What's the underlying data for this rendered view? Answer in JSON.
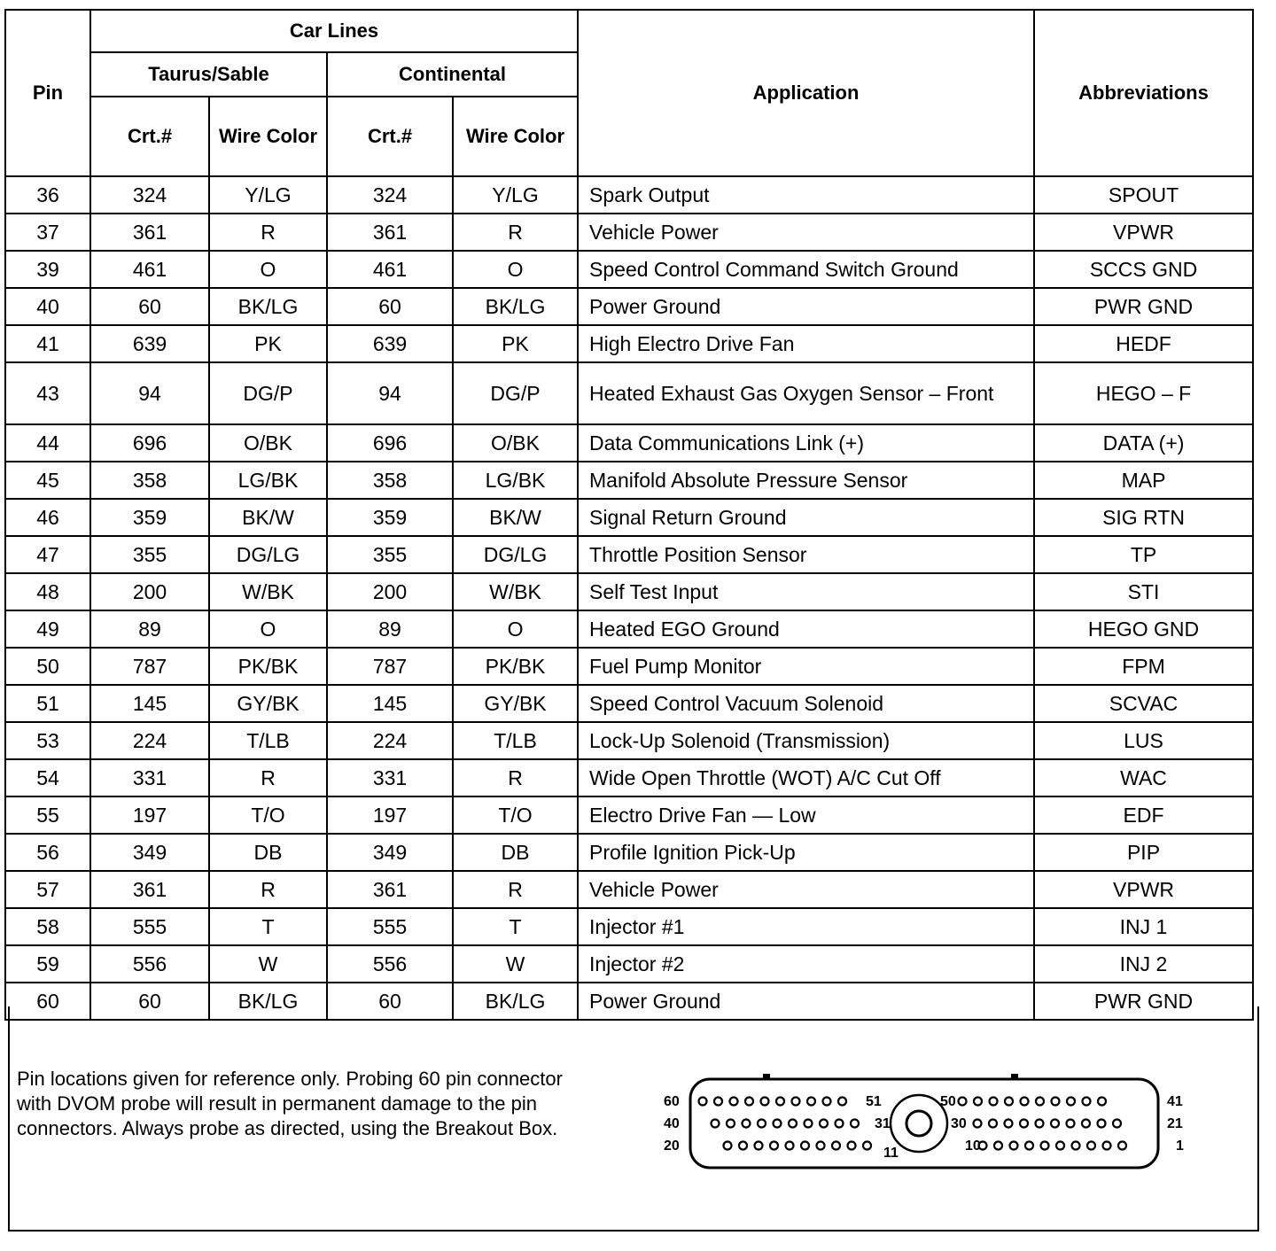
{
  "header": {
    "pin": "Pin",
    "car_lines": "Car Lines",
    "taurus": "Taurus/Sable",
    "continental": "Continental",
    "crt": "Crt.#",
    "wire_color": "Wire Color",
    "application": "Application",
    "abbreviations": "Abbreviations"
  },
  "rows": [
    [
      "36",
      "324",
      "Y/LG",
      "324",
      "Y/LG",
      "Spark Output",
      "SPOUT"
    ],
    [
      "37",
      "361",
      "R",
      "361",
      "R",
      "Vehicle Power",
      "VPWR"
    ],
    [
      "39",
      "461",
      "O",
      "461",
      "O",
      "Speed Control Command Switch Ground",
      "SCCS GND"
    ],
    [
      "40",
      "60",
      "BK/LG",
      "60",
      "BK/LG",
      "Power Ground",
      "PWR GND"
    ],
    [
      "41",
      "639",
      "PK",
      "639",
      "PK",
      "High Electro Drive Fan",
      "HEDF"
    ],
    [
      "43",
      "94",
      "DG/P",
      "94",
      "DG/P",
      "Heated Exhaust Gas Oxygen Sensor – Front",
      "HEGO – F"
    ],
    [
      "44",
      "696",
      "O/BK",
      "696",
      "O/BK",
      "Data Communications Link (+)",
      "DATA (+)"
    ],
    [
      "45",
      "358",
      "LG/BK",
      "358",
      "LG/BK",
      "Manifold Absolute Pressure Sensor",
      "MAP"
    ],
    [
      "46",
      "359",
      "BK/W",
      "359",
      "BK/W",
      "Signal Return Ground",
      "SIG RTN"
    ],
    [
      "47",
      "355",
      "DG/LG",
      "355",
      "DG/LG",
      "Throttle Position Sensor",
      "TP"
    ],
    [
      "48",
      "200",
      "W/BK",
      "200",
      "W/BK",
      "Self Test Input",
      "STI"
    ],
    [
      "49",
      "89",
      "O",
      "89",
      "O",
      "Heated EGO Ground",
      "HEGO GND"
    ],
    [
      "50",
      "787",
      "PK/BK",
      "787",
      "PK/BK",
      "Fuel Pump Monitor",
      "FPM"
    ],
    [
      "51",
      "145",
      "GY/BK",
      "145",
      "GY/BK",
      "Speed Control Vacuum Solenoid",
      "SCVAC"
    ],
    [
      "53",
      "224",
      "T/LB",
      "224",
      "T/LB",
      "Lock-Up Solenoid (Transmission)",
      "LUS"
    ],
    [
      "54",
      "331",
      "R",
      "331",
      "R",
      "Wide Open Throttle (WOT) A/C Cut Off",
      "WAC"
    ],
    [
      "55",
      "197",
      "T/O",
      "197",
      "T/O",
      "Electro Drive Fan — Low",
      "EDF"
    ],
    [
      "56",
      "349",
      "DB",
      "349",
      "DB",
      "Profile Ignition Pick-Up",
      "PIP"
    ],
    [
      "57",
      "361",
      "R",
      "361",
      "R",
      "Vehicle Power",
      "VPWR"
    ],
    [
      "58",
      "555",
      "T",
      "555",
      "T",
      "Injector #1",
      "INJ 1"
    ],
    [
      "59",
      "556",
      "W",
      "556",
      "W",
      "Injector #2",
      "INJ 2"
    ],
    [
      "60",
      "60",
      "BK/LG",
      "60",
      "BK/LG",
      "Power Ground",
      "PWR GND"
    ]
  ],
  "footer": {
    "note": "Pin locations given for reference only. Probing 60 pin connector with DVOM probe will result in permanent damage to the pin connectors. Always probe as directed, using the Breakout Box.",
    "connector_labels": {
      "l60": "60",
      "l40": "40",
      "l20": "20",
      "c51": "51",
      "c31": "31",
      "c11": "11",
      "c50": "50",
      "c30": "30",
      "c10": "10",
      "r41": "41",
      "r21": "21",
      "r1": "1"
    }
  }
}
